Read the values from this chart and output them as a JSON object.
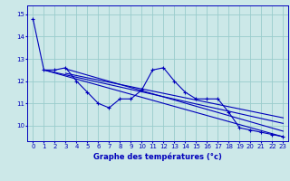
{
  "xlabel": "Graphe des températures (°c)",
  "bg_color": "#cce8e8",
  "line_color": "#0000bb",
  "grid_color": "#99cccc",
  "xlim": [
    -0.5,
    23.5
  ],
  "ylim": [
    9.3,
    15.4
  ],
  "yticks": [
    10,
    11,
    12,
    13,
    14,
    15
  ],
  "xticks": [
    0,
    1,
    2,
    3,
    4,
    5,
    6,
    7,
    8,
    9,
    10,
    11,
    12,
    13,
    14,
    15,
    16,
    17,
    18,
    19,
    20,
    21,
    22,
    23
  ],
  "main_data": [
    14.8,
    12.5,
    12.5,
    12.6,
    12.0,
    11.5,
    11.0,
    10.8,
    11.2,
    11.2,
    11.6,
    12.5,
    12.6,
    12.0,
    11.5,
    11.2,
    11.2,
    11.2,
    10.6,
    9.9,
    9.8,
    9.7,
    9.6,
    9.5
  ],
  "trend_lines": [
    [
      1,
      12.5,
      23,
      9.5
    ],
    [
      1,
      12.5,
      23,
      10.1
    ],
    [
      3,
      12.55,
      23,
      9.75
    ],
    [
      3,
      12.35,
      23,
      10.35
    ]
  ],
  "xlabel_fontsize": 6,
  "tick_fontsize": 5,
  "linewidth": 0.8,
  "markersize": 3.0
}
